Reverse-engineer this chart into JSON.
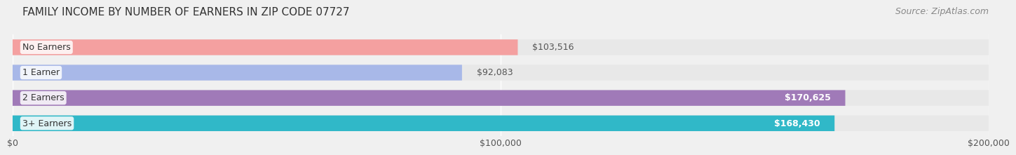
{
  "title": "FAMILY INCOME BY NUMBER OF EARNERS IN ZIP CODE 07727",
  "source": "Source: ZipAtlas.com",
  "categories": [
    "No Earners",
    "1 Earner",
    "2 Earners",
    "3+ Earners"
  ],
  "values": [
    103516,
    92083,
    170625,
    168430
  ],
  "bar_colors": [
    "#f4a0a0",
    "#a8b8e8",
    "#a07ab8",
    "#30b8c8"
  ],
  "label_colors": [
    "#555555",
    "#555555",
    "#ffffff",
    "#ffffff"
  ],
  "xlim": [
    0,
    200000
  ],
  "xticks": [
    0,
    100000,
    200000
  ],
  "xtick_labels": [
    "$0",
    "$100,000",
    "$200,000"
  ],
  "background_color": "#f0f0f0",
  "bar_background_color": "#e8e8e8",
  "title_fontsize": 11,
  "source_fontsize": 9,
  "label_fontsize": 9,
  "tick_fontsize": 9,
  "category_fontsize": 9
}
